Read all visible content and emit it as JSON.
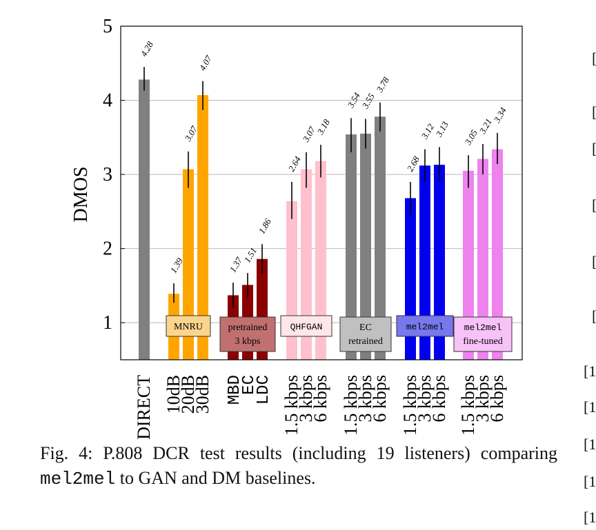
{
  "chart_data": {
    "type": "bar",
    "ylabel": "DMOS",
    "ylim": [
      0.5,
      5
    ],
    "yticks": [
      1,
      2,
      3,
      4,
      5
    ],
    "grid": true,
    "groups": [
      {
        "label": "",
        "mono": false,
        "color": "#808080",
        "bars": [
          {
            "category": "DIRECT",
            "value": 4.28,
            "err": [
              4.13,
              4.45
            ],
            "label": "4.28"
          }
        ]
      },
      {
        "label": "MNRU",
        "mono": false,
        "color": "#ffa500",
        "bars": [
          {
            "category": "10dB",
            "value": 1.39,
            "err": [
              1.27,
              1.53
            ],
            "label": "1.39"
          },
          {
            "category": "20dB",
            "value": 3.07,
            "err": [
              2.82,
              3.31
            ],
            "label": "3.07"
          },
          {
            "category": "30dB",
            "value": 4.07,
            "err": [
              3.87,
              4.26
            ],
            "label": "4.07"
          }
        ]
      },
      {
        "label": "pretrained\n3 kbps",
        "mono": false,
        "color": "#8b0000",
        "bars": [
          {
            "category": "MBD",
            "mono": true,
            "value": 1.37,
            "err": [
              1.2,
              1.54
            ],
            "label": "1.37"
          },
          {
            "category": "EC",
            "mono": true,
            "value": 1.51,
            "err": [
              1.35,
              1.67
            ],
            "label": "1.51"
          },
          {
            "category": "LDC",
            "mono": true,
            "value": 1.86,
            "err": [
              1.66,
              2.06
            ],
            "label": "1.86"
          }
        ]
      },
      {
        "label": "QHFGAN",
        "mono": true,
        "color": "#ffc0cb",
        "bars": [
          {
            "category": "1.5 kbps",
            "value": 2.64,
            "err": [
              2.4,
              2.9
            ],
            "label": "2.64"
          },
          {
            "category": "3 kbps",
            "value": 3.07,
            "err": [
              2.82,
              3.3
            ],
            "label": "3.07"
          },
          {
            "category": "6 kbps",
            "value": 3.18,
            "err": [
              2.96,
              3.4
            ],
            "label": "3.18"
          }
        ]
      },
      {
        "label": "EC\nretrained",
        "mono": false,
        "color": "#808080",
        "bars": [
          {
            "category": "1.5 kbps",
            "value": 3.54,
            "err": [
              3.3,
              3.76
            ],
            "label": "3.54"
          },
          {
            "category": "3 kbps",
            "value": 3.55,
            "err": [
              3.35,
              3.75
            ],
            "label": "3.55"
          },
          {
            "category": "6 kbps",
            "value": 3.78,
            "err": [
              3.58,
              3.97
            ],
            "label": "3.78"
          }
        ]
      },
      {
        "label": "mel2mel",
        "mono": true,
        "color": "#0000ee",
        "bars": [
          {
            "category": "1.5 kbps",
            "value": 2.68,
            "err": [
              2.45,
              2.9
            ],
            "label": "2.68"
          },
          {
            "category": "3 kbps",
            "value": 3.12,
            "err": [
              2.9,
              3.34
            ],
            "label": "3.12"
          },
          {
            "category": "6 kbps",
            "value": 3.13,
            "err": [
              2.9,
              3.37
            ],
            "label": "3.13"
          }
        ]
      },
      {
        "label": "mel2mel\nfine-tuned",
        "mono": false,
        "color": "#ee82ee",
        "label_mono_first_line": true,
        "bars": [
          {
            "category": "1.5 kbps",
            "value": 3.05,
            "err": [
              2.82,
              3.26
            ],
            "label": "3.05"
          },
          {
            "category": "3 kbps",
            "value": 3.21,
            "err": [
              3.0,
              3.41
            ],
            "label": "3.21"
          },
          {
            "category": "6 kbps",
            "value": 3.34,
            "err": [
              3.14,
              3.56
            ],
            "label": "3.34"
          }
        ]
      }
    ],
    "group_box_colors": [
      "",
      "#fbd58e",
      "#c17070",
      "#ffe6ea",
      "#c0c0c0",
      "#7777ee",
      "#f7c2f7"
    ]
  },
  "caption": {
    "prefix": "Fig. 4: P.808 DCR test results (including 19 listeners) comparing ",
    "mono": "mel2mel",
    "suffix": " to GAN and DM baselines."
  },
  "side_refs": [
    "[",
    "[",
    "[",
    "[",
    "[",
    "[",
    "[1",
    "[1",
    "[1",
    "[1",
    "[1"
  ]
}
